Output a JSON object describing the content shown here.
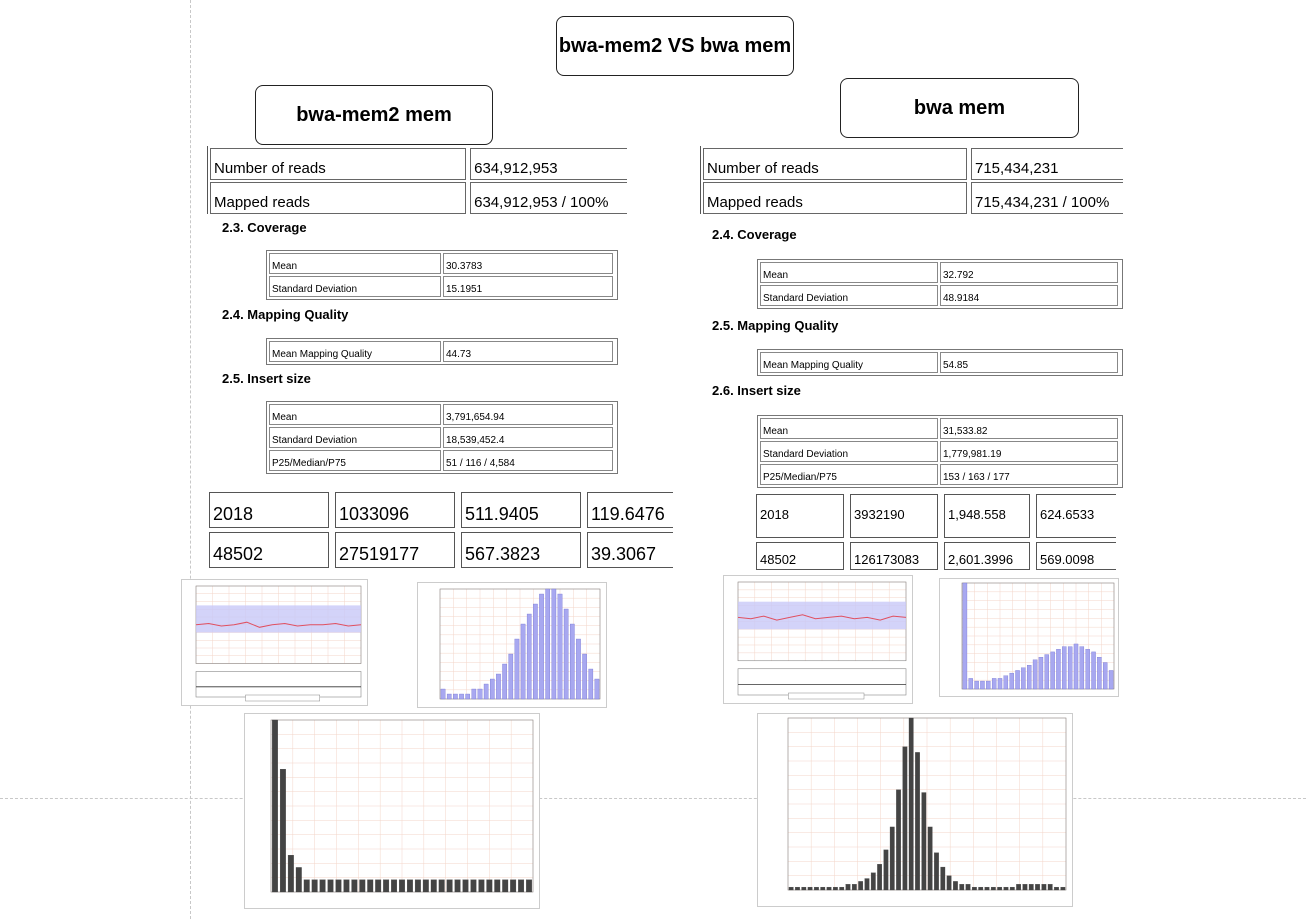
{
  "main_title": "bwa-mem2 VS bwa mem",
  "left": {
    "title": "bwa-mem2 mem",
    "summary": [
      {
        "label": "Number of reads",
        "value": "634,912,953"
      },
      {
        "label": "Mapped reads",
        "value": "634,912,953 / 100%"
      }
    ],
    "coverage": {
      "heading": "2.3. Coverage",
      "rows": [
        {
          "label": "Mean",
          "value": "30.3783"
        },
        {
          "label": "Standard Deviation",
          "value": "15.1951"
        }
      ]
    },
    "mapping_quality": {
      "heading": "2.4. Mapping Quality",
      "rows": [
        {
          "label": "Mean Mapping Quality",
          "value": "44.73"
        }
      ]
    },
    "insert_size": {
      "heading": "2.5. Insert size",
      "rows": [
        {
          "label": "Mean",
          "value": "3,791,654.94"
        },
        {
          "label": "Standard Deviation",
          "value": "18,539,452.4"
        },
        {
          "label": "P25/Median/P75",
          "value": "51 / 116 / 4,584"
        }
      ]
    },
    "numbers": [
      [
        "2018",
        "1033096",
        "511.9405",
        "119.6476"
      ],
      [
        "48502",
        "27519177",
        "567.3823",
        "39.3067"
      ]
    ]
  },
  "right": {
    "title": "bwa mem",
    "summary": [
      {
        "label": "Number of reads",
        "value": "715,434,231"
      },
      {
        "label": "Mapped reads",
        "value": "715,434,231 / 100%"
      }
    ],
    "coverage": {
      "heading": "2.4. Coverage",
      "rows": [
        {
          "label": "Mean",
          "value": "32.792"
        },
        {
          "label": "Standard Deviation",
          "value": "48.9184"
        }
      ]
    },
    "mapping_quality": {
      "heading": "2.5. Mapping Quality",
      "rows": [
        {
          "label": "Mean Mapping Quality",
          "value": "54.85"
        }
      ]
    },
    "insert_size": {
      "heading": "2.6. Insert size",
      "rows": [
        {
          "label": "Mean",
          "value": "31,533.82"
        },
        {
          "label": "Standard Deviation",
          "value": "1,779,981.19"
        },
        {
          "label": "P25/Median/P75",
          "value": "153 / 163 / 177"
        }
      ]
    },
    "numbers": [
      [
        "2018",
        "3932190",
        "1,948.558",
        "624.6533"
      ],
      [
        "48502",
        "126173083",
        "2,601.3996",
        "569.0098"
      ]
    ]
  },
  "chart_data": [
    {
      "type": "line",
      "panel": "left-coverage-across-reference",
      "series": [
        {
          "values": [
            30,
            31,
            29,
            30,
            32,
            28,
            30,
            31,
            29,
            30,
            30,
            31,
            29,
            30
          ]
        }
      ]
    },
    {
      "type": "bar",
      "panel": "left-mapping-quality-histogram",
      "values": [
        2,
        1,
        1,
        1,
        1,
        2,
        2,
        3,
        4,
        5,
        7,
        9,
        12,
        15,
        17,
        19,
        21,
        22,
        22,
        21,
        18,
        15,
        12,
        9,
        6,
        4
      ]
    },
    {
      "type": "bar",
      "panel": "left-insert-size-histogram",
      "values": [
        14,
        10,
        3,
        2,
        1,
        1,
        1,
        1,
        1,
        1,
        1,
        1,
        1,
        1,
        1,
        1,
        1,
        1,
        1,
        1,
        1,
        1,
        1,
        1,
        1,
        1,
        1,
        1,
        1,
        1,
        1,
        1,
        1
      ]
    },
    {
      "type": "line",
      "panel": "right-coverage-across-reference",
      "series": [
        {
          "values": [
            33,
            32,
            34,
            31,
            33,
            35,
            32,
            33,
            34,
            32,
            33,
            31,
            34,
            33
          ]
        }
      ]
    },
    {
      "type": "bar",
      "panel": "right-mapping-quality-histogram",
      "values": [
        40,
        4,
        3,
        3,
        3,
        4,
        4,
        5,
        6,
        7,
        8,
        9,
        11,
        12,
        13,
        14,
        15,
        16,
        16,
        17,
        16,
        15,
        14,
        12,
        10,
        7
      ]
    },
    {
      "type": "bar",
      "panel": "right-insert-size-histogram",
      "values": [
        1,
        1,
        1,
        1,
        1,
        1,
        1,
        1,
        1,
        2,
        2,
        3,
        4,
        6,
        9,
        14,
        22,
        35,
        50,
        60,
        48,
        34,
        22,
        13,
        8,
        5,
        3,
        2,
        2,
        1,
        1,
        1,
        1,
        1,
        1,
        1,
        2,
        2,
        2,
        2,
        2,
        2,
        1,
        1
      ]
    }
  ]
}
